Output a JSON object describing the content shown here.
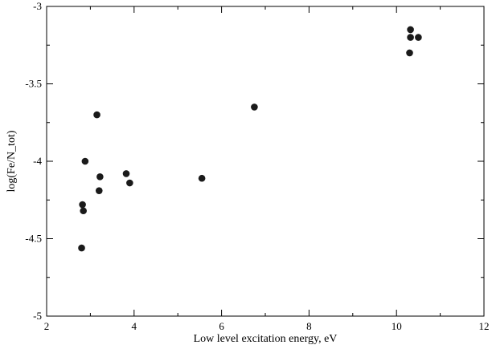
{
  "chart_data": {
    "type": "scatter",
    "title": "",
    "xlabel": "Low level excitation energy, eV",
    "ylabel": "log(Fe/N_tot)",
    "xlim": [
      2,
      12
    ],
    "ylim": [
      -5,
      -3
    ],
    "xticks": [
      2,
      4,
      6,
      8,
      10,
      12
    ],
    "yticks": [
      -5,
      -4.5,
      -4,
      -3.5,
      -3
    ],
    "xtick_labels": [
      "2",
      "4",
      "6",
      "8",
      "10",
      "12"
    ],
    "ytick_labels": [
      "-5",
      "-4.5",
      "-4",
      "-3.5",
      "-3"
    ],
    "grid": false,
    "marker_color": "#1a1a1a",
    "points": [
      {
        "x": 2.8,
        "y": -4.56
      },
      {
        "x": 2.82,
        "y": -4.28
      },
      {
        "x": 2.84,
        "y": -4.32
      },
      {
        "x": 2.88,
        "y": -4.0
      },
      {
        "x": 3.15,
        "y": -3.7
      },
      {
        "x": 3.2,
        "y": -4.19
      },
      {
        "x": 3.22,
        "y": -4.1
      },
      {
        "x": 3.82,
        "y": -4.08
      },
      {
        "x": 3.9,
        "y": -4.14
      },
      {
        "x": 5.55,
        "y": -4.11
      },
      {
        "x": 6.75,
        "y": -3.65
      },
      {
        "x": 10.3,
        "y": -3.3
      },
      {
        "x": 10.32,
        "y": -3.15
      },
      {
        "x": 10.32,
        "y": -3.2
      },
      {
        "x": 10.5,
        "y": -3.2
      }
    ]
  }
}
